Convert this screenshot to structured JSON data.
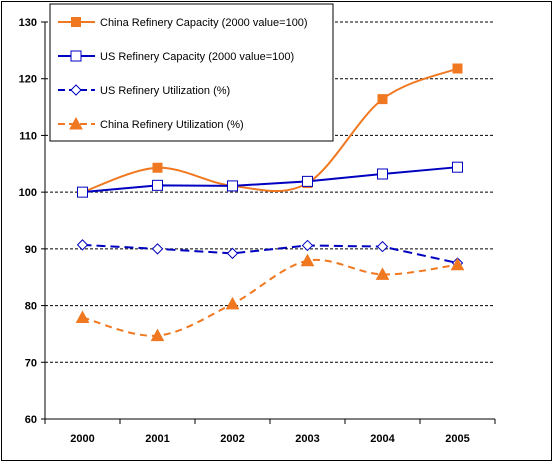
{
  "chart_data": {
    "type": "line",
    "title": "",
    "xlabel": "",
    "ylabel": "",
    "categories": [
      "2000",
      "2001",
      "2002",
      "2003",
      "2004",
      "2005"
    ],
    "ylim": [
      60,
      130
    ],
    "yticks": [
      60,
      70,
      80,
      90,
      100,
      110,
      120,
      130
    ],
    "grid": "horizontal dashed",
    "legend_position": "top-left",
    "series": [
      {
        "name": "China Refinery Capacity (2000 value=100)",
        "values": [
          100,
          104.3,
          101.1,
          101.6,
          116.4,
          121.8
        ],
        "color": "#f07820",
        "line": "solid",
        "marker": "filled-square"
      },
      {
        "name": "US Refinery Capacity (2000 value=100)",
        "values": [
          100,
          101.2,
          101.1,
          101.9,
          103.2,
          104.4
        ],
        "color": "#0000c0",
        "line": "solid",
        "marker": "open-square"
      },
      {
        "name": "US Refinery Utilization (%)",
        "values": [
          90.7,
          90.0,
          89.2,
          90.6,
          90.4,
          87.5
        ],
        "color": "#0000c0",
        "line": "dashed",
        "marker": "open-diamond"
      },
      {
        "name": "China Refinery Utilization (%)",
        "values": [
          77.9,
          74.7,
          80.3,
          87.9,
          85.5,
          87.2
        ],
        "color": "#f07820",
        "line": "dashed",
        "marker": "filled-triangle"
      }
    ]
  }
}
